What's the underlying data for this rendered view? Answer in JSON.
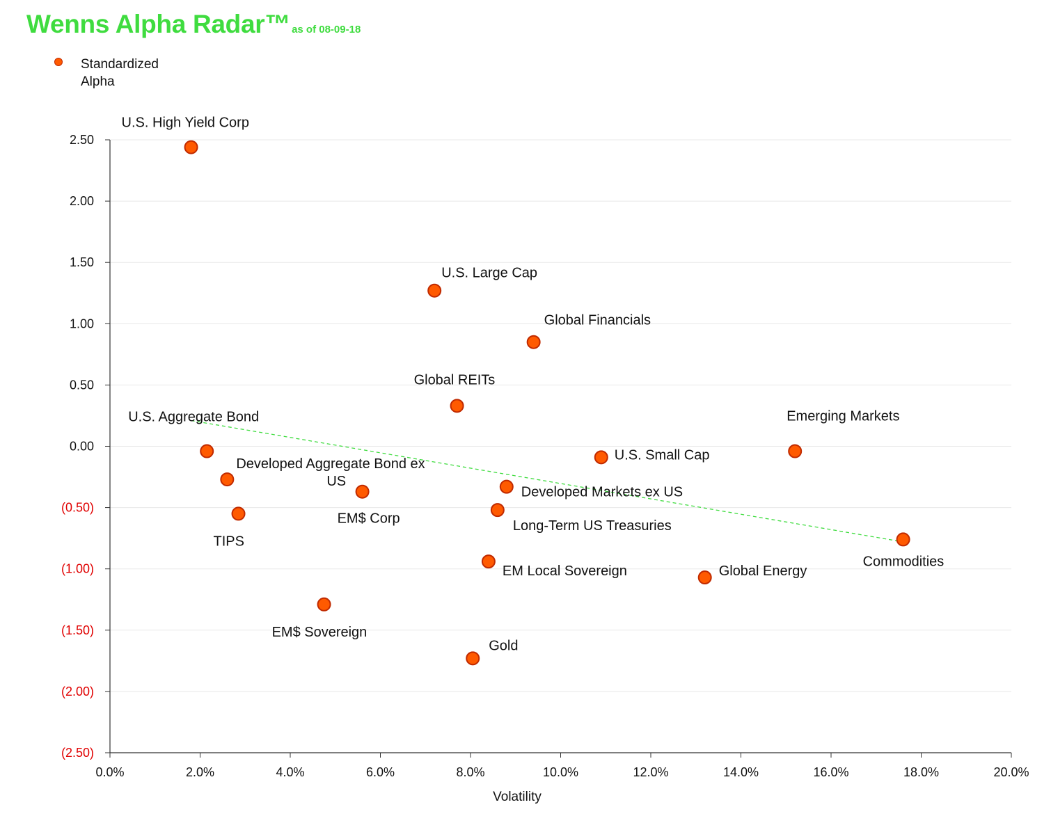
{
  "header": {
    "title": "Wenns Alpha Radar™",
    "subtitle": "as of 08-09-18"
  },
  "legend": {
    "label": "Standardized Alpha"
  },
  "colors": {
    "title": "#3fdc3f",
    "marker_fill": "#ff5a00",
    "marker_stroke": "#c02a00",
    "negative_tick": "#e00000",
    "trendline": "#3fdc3f",
    "grid": "#e8e8e8"
  },
  "chart_data": {
    "type": "scatter",
    "title": "Wenns Alpha Radar™",
    "subtitle": "as of 08-09-18",
    "xlabel": "Volatility",
    "ylabel": "",
    "xlim": [
      0,
      20
    ],
    "ylim": [
      -2.5,
      2.5
    ],
    "x_ticks": [
      "0.0%",
      "2.0%",
      "4.0%",
      "6.0%",
      "8.0%",
      "10.0%",
      "12.0%",
      "14.0%",
      "16.0%",
      "18.0%",
      "20.0%"
    ],
    "y_ticks": [
      "2.50",
      "2.00",
      "1.50",
      "1.00",
      "0.50",
      "0.00",
      "(0.50)",
      "(1.00)",
      "(1.50)",
      "(2.00)",
      "(2.50)"
    ],
    "grid": true,
    "legend_position": "top-left",
    "series": [
      {
        "name": "Standardized Alpha",
        "points": [
          {
            "label": "U.S. High Yield Corp",
            "x": 1.8,
            "y": 2.44
          },
          {
            "label": "U.S. Large Cap",
            "x": 7.2,
            "y": 1.27
          },
          {
            "label": "Global Financials",
            "x": 9.4,
            "y": 0.85
          },
          {
            "label": "Global REITs",
            "x": 7.7,
            "y": 0.33
          },
          {
            "label": "U.S. Aggregate Bond",
            "x": 2.15,
            "y": -0.04
          },
          {
            "label": "Emerging Markets",
            "x": 15.2,
            "y": -0.04
          },
          {
            "label": "U.S. Small Cap",
            "x": 10.9,
            "y": -0.09
          },
          {
            "label": "Developed Aggregate Bond ex US",
            "x": 2.6,
            "y": -0.27
          },
          {
            "label": "Developed Markets ex US",
            "x": 8.8,
            "y": -0.33
          },
          {
            "label": "EM$ Corp",
            "x": 5.6,
            "y": -0.37
          },
          {
            "label": "Long-Term US Treasuries",
            "x": 8.6,
            "y": -0.52
          },
          {
            "label": "TIPS",
            "x": 2.85,
            "y": -0.55
          },
          {
            "label": "Commodities",
            "x": 17.6,
            "y": -0.76
          },
          {
            "label": "EM Local Sovereign",
            "x": 8.4,
            "y": -0.94
          },
          {
            "label": "Global Energy",
            "x": 13.2,
            "y": -1.07
          },
          {
            "label": "EM$ Sovereign",
            "x": 4.75,
            "y": -1.29
          },
          {
            "label": "Gold",
            "x": 8.05,
            "y": -1.73
          }
        ]
      }
    ],
    "trendline": {
      "x": [
        1.8,
        17.6
      ],
      "y": [
        0.21,
        -0.78
      ]
    }
  }
}
